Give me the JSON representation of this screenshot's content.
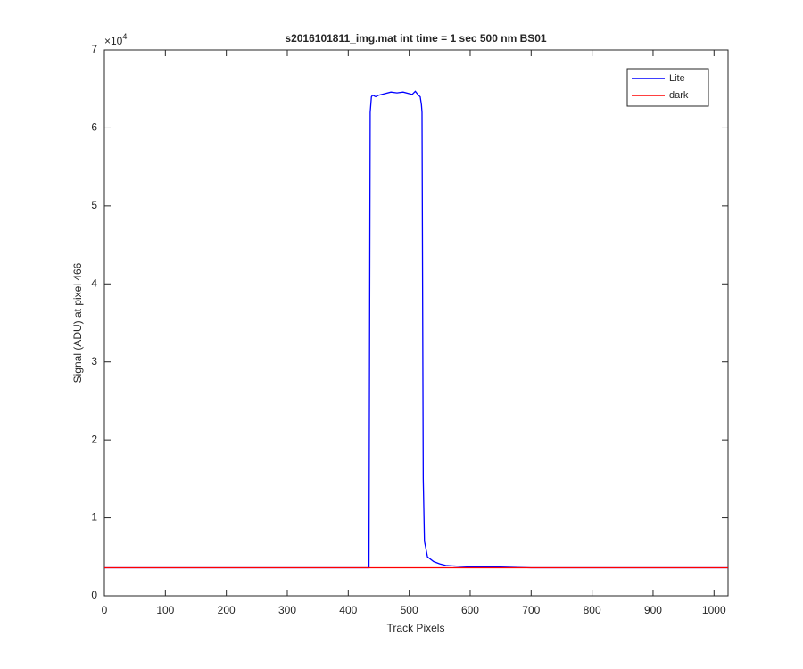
{
  "chart_data": {
    "type": "line",
    "title": "s2016101811_img.mat int time = 1 sec  500 nm BS01",
    "xlabel": "Track Pixels",
    "ylabel": "Signal (ADU) at pixel 466",
    "y_multiplier": "×10",
    "y_multiplier_exponent": "4",
    "x": [
      0,
      100,
      200,
      300,
      400,
      434,
      436,
      438,
      440,
      445,
      450,
      460,
      470,
      480,
      490,
      500,
      505,
      510,
      515,
      518,
      520,
      521,
      523,
      525,
      530,
      540,
      550,
      560,
      580,
      600,
      650,
      700,
      800,
      900,
      1023
    ],
    "series": [
      {
        "name": "Lite",
        "color": "#0000ff",
        "values": [
          0.36,
          0.36,
          0.36,
          0.36,
          0.36,
          0.36,
          6.2,
          6.4,
          6.42,
          6.4,
          6.42,
          6.44,
          6.46,
          6.45,
          6.46,
          6.44,
          6.43,
          6.47,
          6.42,
          6.4,
          6.3,
          6.2,
          1.5,
          0.7,
          0.5,
          0.44,
          0.41,
          0.39,
          0.38,
          0.37,
          0.37,
          0.36,
          0.36,
          0.36,
          0.36
        ]
      },
      {
        "name": "dark",
        "color": "#ff0000",
        "values": [
          0.36,
          0.36,
          0.36,
          0.36,
          0.36,
          0.36,
          0.36,
          0.36,
          0.36,
          0.36,
          0.36,
          0.36,
          0.36,
          0.36,
          0.36,
          0.36,
          0.36,
          0.36,
          0.36,
          0.36,
          0.36,
          0.36,
          0.36,
          0.36,
          0.36,
          0.36,
          0.36,
          0.36,
          0.36,
          0.36,
          0.36,
          0.36,
          0.36,
          0.36,
          0.36
        ]
      }
    ],
    "xlim": [
      0,
      1023
    ],
    "xticks": [
      0,
      100,
      200,
      300,
      400,
      500,
      600,
      700,
      800,
      900,
      1000
    ],
    "ylim": [
      0,
      7
    ],
    "yticks": [
      0,
      1,
      2,
      3,
      4,
      5,
      6,
      7
    ],
    "grid": false,
    "legend": "upper-right"
  }
}
